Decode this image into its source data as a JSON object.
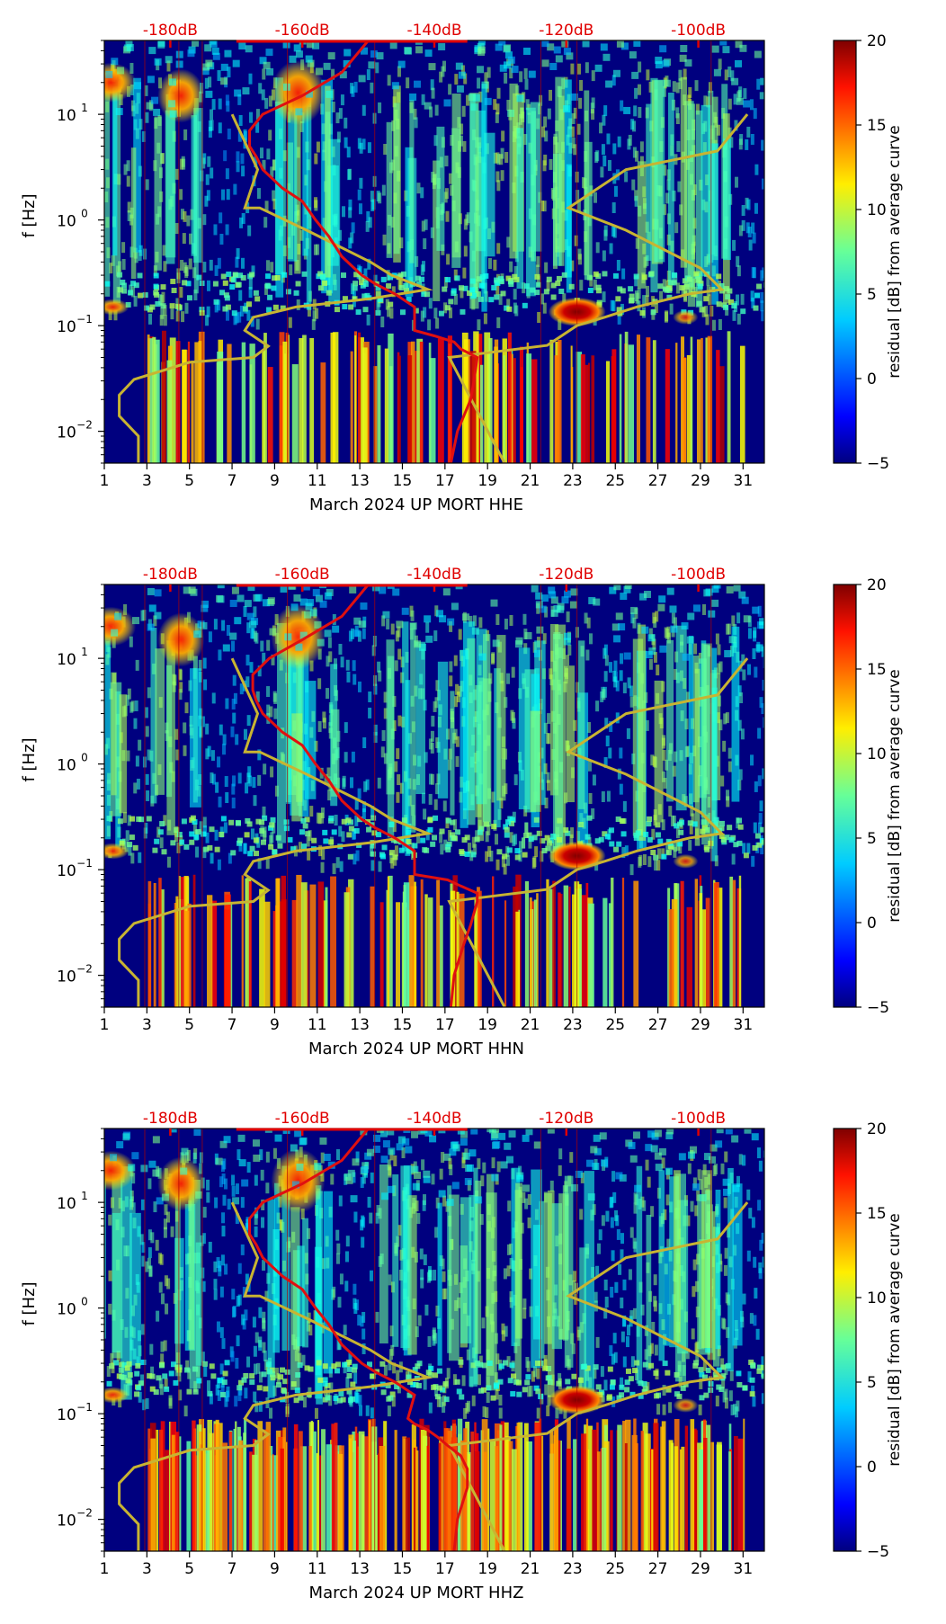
{
  "colors": {
    "noise_model": "#c8b432",
    "median_curve": "#e01010",
    "top_axis": "#e00000",
    "colormap": [
      "#00007f",
      "#0000ff",
      "#007fff",
      "#00ffff",
      "#7fff7f",
      "#ffff00",
      "#ff7f00",
      "#ff0000",
      "#7f0000"
    ]
  },
  "chart_data": [
    {
      "type": "heatmap",
      "xlabel": "March 2024 UP MORT  HHE",
      "ylabel": "f [Hz]",
      "colorbar_label": "residual [dB] from average curve",
      "x_ticks": [
        "1",
        "3",
        "5",
        "7",
        "9",
        "11",
        "13",
        "15",
        "17",
        "19",
        "21",
        "23",
        "25",
        "27",
        "29",
        "31"
      ],
      "y_ticks": [
        "10",
        "10",
        "10",
        "10"
      ],
      "y_tick_exponents": [
        "−2",
        "−1",
        "0",
        "1"
      ],
      "top_ticks": [
        "-180dB",
        "-160dB",
        "-140dB",
        "-120dB",
        "-100dB"
      ],
      "colorbar_ticks": [
        "20",
        "15",
        "10",
        "5",
        "0",
        "−5"
      ],
      "xlim": [
        1,
        32
      ],
      "ylim_hz": [
        0.005,
        50
      ],
      "clim_db": [
        -5,
        20
      ],
      "top_xlim_db": [
        -190,
        -90
      ],
      "median_curve": {
        "db": [
          -137.5,
          -136.5,
          -134.5,
          -134,
          -133.5,
          -136,
          -137,
          -140,
          -143,
          -143,
          -143,
          -146,
          -149,
          -151,
          -154,
          -156,
          -158,
          -160,
          -163,
          -166,
          -167,
          -168,
          -168,
          -166,
          -160,
          -154,
          -150
        ],
        "hz": [
          0.005,
          0.01,
          0.02,
          0.03,
          0.05,
          0.06,
          0.07,
          0.08,
          0.09,
          0.1,
          0.15,
          0.2,
          0.25,
          0.3,
          0.45,
          0.7,
          1,
          1.5,
          2,
          3,
          4,
          5,
          7,
          10,
          15,
          25,
          50
        ]
      },
      "noise_model_low": {
        "day": [
          2.6,
          2.6,
          1.7,
          1.7,
          2.4,
          5.0,
          8.0,
          8.7,
          7.6,
          8.0,
          10.0,
          13.5,
          16.2,
          14.5,
          13.5,
          10.5,
          8.3,
          7.6,
          8.2,
          7.0
        ],
        "hz": [
          0.005,
          0.009,
          0.014,
          0.022,
          0.031,
          0.045,
          0.05,
          0.064,
          0.09,
          0.12,
          0.15,
          0.18,
          0.22,
          0.3,
          0.4,
          0.8,
          1.3,
          1.3,
          3,
          10
        ]
      },
      "noise_model_high": {
        "day": [
          19.8,
          17.2,
          21.8,
          23.2,
          24.5,
          26.0,
          28.5,
          30.0,
          29.0,
          25.5,
          22.8,
          25.5,
          29.8,
          31.2
        ],
        "hz": [
          0.005,
          0.05,
          0.065,
          0.1,
          0.12,
          0.15,
          0.2,
          0.22,
          0.35,
          0.8,
          1.3,
          3,
          4.5,
          10
        ]
      }
    },
    {
      "type": "heatmap",
      "xlabel": "March 2024 UP MORT  HHN",
      "ylabel": "f [Hz]",
      "colorbar_label": "residual [dB] from average curve",
      "x_ticks": [
        "1",
        "3",
        "5",
        "7",
        "9",
        "11",
        "13",
        "15",
        "17",
        "19",
        "21",
        "23",
        "25",
        "27",
        "29",
        "31"
      ],
      "y_ticks": [
        "10",
        "10",
        "10",
        "10"
      ],
      "y_tick_exponents": [
        "−2",
        "−1",
        "0",
        "1"
      ],
      "top_ticks": [
        "-180dB",
        "-160dB",
        "-140dB",
        "-120dB",
        "-100dB"
      ],
      "colorbar_ticks": [
        "20",
        "15",
        "10",
        "5",
        "0",
        "−5"
      ],
      "xlim": [
        1,
        32
      ],
      "ylim_hz": [
        0.005,
        50
      ],
      "clim_db": [
        -5,
        20
      ],
      "top_xlim_db": [
        -190,
        -90
      ],
      "median_curve": {
        "db": [
          -137.5,
          -137,
          -135.5,
          -134.5,
          -133.5,
          -133.5,
          -136,
          -138,
          -143,
          -143,
          -143,
          -146,
          -149,
          -151,
          -154,
          -156,
          -158,
          -160,
          -163,
          -166,
          -167,
          -167.5,
          -167.5,
          -165,
          -160,
          -154,
          -150
        ],
        "hz": [
          0.005,
          0.01,
          0.02,
          0.03,
          0.05,
          0.06,
          0.07,
          0.08,
          0.09,
          0.1,
          0.15,
          0.2,
          0.25,
          0.3,
          0.45,
          0.7,
          1,
          1.5,
          2,
          3,
          4,
          5,
          7,
          10,
          15,
          25,
          50
        ]
      },
      "noise_model_low": {
        "day": [
          2.6,
          2.6,
          1.7,
          1.7,
          2.4,
          5.0,
          8.0,
          8.7,
          7.6,
          8.0,
          10.0,
          13.5,
          16.2,
          14.5,
          13.5,
          10.5,
          8.3,
          7.6,
          8.2,
          7.0
        ],
        "hz": [
          0.005,
          0.009,
          0.014,
          0.022,
          0.031,
          0.045,
          0.05,
          0.064,
          0.09,
          0.12,
          0.15,
          0.18,
          0.22,
          0.3,
          0.4,
          0.8,
          1.3,
          1.3,
          3,
          10
        ]
      },
      "noise_model_high": {
        "day": [
          19.8,
          17.2,
          21.8,
          23.2,
          24.5,
          26.0,
          28.5,
          30.0,
          29.0,
          25.5,
          22.8,
          25.5,
          29.8,
          31.2
        ],
        "hz": [
          0.005,
          0.05,
          0.065,
          0.1,
          0.12,
          0.15,
          0.2,
          0.22,
          0.35,
          0.8,
          1.3,
          3,
          4.5,
          10
        ]
      }
    },
    {
      "type": "heatmap",
      "xlabel": "March 2024 UP MORT  HHZ",
      "ylabel": "f [Hz]",
      "colorbar_label": "residual [dB] from average curve",
      "x_ticks": [
        "1",
        "3",
        "5",
        "7",
        "9",
        "11",
        "13",
        "15",
        "17",
        "19",
        "21",
        "23",
        "25",
        "27",
        "29",
        "31"
      ],
      "y_ticks": [
        "10",
        "10",
        "10",
        "10"
      ],
      "y_tick_exponents": [
        "−2",
        "−1",
        "0",
        "1"
      ],
      "top_ticks": [
        "-180dB",
        "-160dB",
        "-140dB",
        "-120dB",
        "-100dB"
      ],
      "colorbar_ticks": [
        "20",
        "15",
        "10",
        "5",
        "0",
        "−5"
      ],
      "xlim": [
        1,
        32
      ],
      "ylim_hz": [
        0.005,
        50
      ],
      "clim_db": [
        -5,
        20
      ],
      "top_xlim_db": [
        -190,
        -90
      ],
      "median_curve": {
        "db": [
          -137,
          -136.5,
          -135,
          -135,
          -136,
          -138,
          -139.5,
          -141,
          -143,
          -144,
          -143,
          -146,
          -149,
          -151,
          -154,
          -156,
          -158,
          -160,
          -163,
          -166,
          -167,
          -168,
          -168,
          -166,
          -160,
          -154,
          -150
        ],
        "hz": [
          0.005,
          0.01,
          0.02,
          0.03,
          0.04,
          0.05,
          0.06,
          0.07,
          0.08,
          0.09,
          0.15,
          0.2,
          0.25,
          0.3,
          0.45,
          0.7,
          1,
          1.5,
          2,
          3,
          4,
          5,
          7,
          10,
          15,
          25,
          50
        ]
      },
      "noise_model_low": {
        "day": [
          2.6,
          2.6,
          1.7,
          1.7,
          2.4,
          5.0,
          8.0,
          8.7,
          7.6,
          8.0,
          10.0,
          13.5,
          16.2,
          14.5,
          13.5,
          10.5,
          8.3,
          7.6,
          8.2,
          7.0
        ],
        "hz": [
          0.005,
          0.009,
          0.014,
          0.022,
          0.031,
          0.045,
          0.05,
          0.064,
          0.09,
          0.12,
          0.15,
          0.18,
          0.22,
          0.3,
          0.4,
          0.8,
          1.3,
          1.3,
          3,
          10
        ]
      },
      "noise_model_high": {
        "day": [
          19.8,
          17.2,
          21.8,
          23.2,
          24.5,
          26.0,
          28.5,
          30.0,
          29.0,
          25.5,
          22.8,
          25.5,
          29.8,
          31.2
        ],
        "hz": [
          0.005,
          0.05,
          0.065,
          0.1,
          0.12,
          0.15,
          0.2,
          0.22,
          0.35,
          0.8,
          1.3,
          3,
          4.5,
          10
        ]
      }
    }
  ]
}
